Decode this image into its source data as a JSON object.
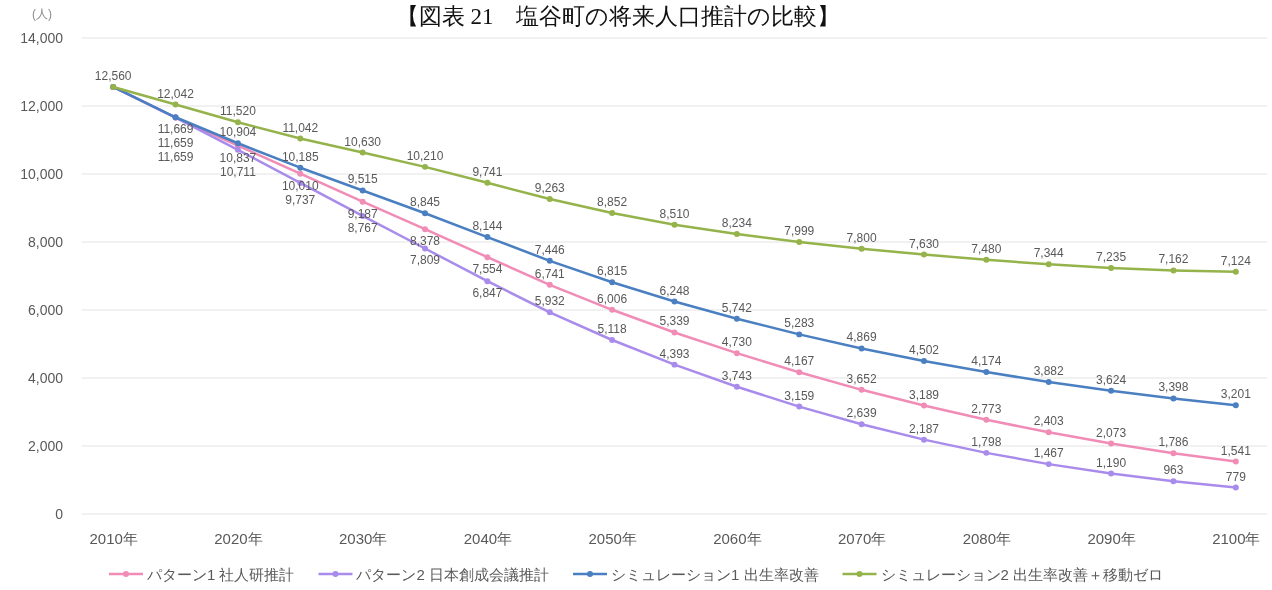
{
  "chart_data": {
    "type": "line",
    "title": "【図表 21　塩谷町の将来人口推計の比較】",
    "ylabel": "(人)",
    "categories": [
      "2010年",
      null,
      "2020年",
      null,
      "2030年",
      null,
      "2040年",
      null,
      "2050年",
      null,
      "2060年",
      null,
      "2070年",
      null,
      "2080年",
      null,
      "2090年",
      null,
      "2100年"
    ],
    "series": [
      {
        "name": "パターン1 社人研推計",
        "color": "#f08cb6",
        "values": [
          12560,
          11659,
          10837,
          10010,
          9187,
          8378,
          7554,
          6741,
          6006,
          5339,
          4730,
          4167,
          3652,
          3189,
          2773,
          2403,
          2073,
          1786,
          1541
        ],
        "value_labels": [
          null,
          "11,659",
          "10,837",
          "10,010",
          "9,187",
          "8,378",
          "7,554",
          "6,741",
          "6,006",
          "5,339",
          "4,730",
          "4,167",
          "3,652",
          "3,189",
          "2,773",
          "2,403",
          "2,073",
          "1,786",
          "1,541"
        ]
      },
      {
        "name": "パターン2 日本創成会議推計",
        "color": "#a98bec",
        "values": [
          12560,
          11659,
          10711,
          9737,
          8767,
          7809,
          6847,
          5932,
          5118,
          4393,
          3743,
          3159,
          2639,
          2187,
          1798,
          1467,
          1190,
          963,
          779
        ],
        "value_labels": [
          null,
          "11,659",
          "10,711",
          "9,737",
          "8,767",
          "7,809",
          "6,847",
          "5,932",
          "5,118",
          "4,393",
          "3,743",
          "3,159",
          "2,639",
          "2,187",
          "1,798",
          "1,467",
          "1,190",
          "963",
          "779"
        ]
      },
      {
        "name": "シミュレーション1 出生率改善",
        "color": "#4a7fc1",
        "values": [
          12560,
          11669,
          10904,
          10185,
          9515,
          8845,
          8144,
          7446,
          6815,
          6248,
          5742,
          5283,
          4869,
          4502,
          4174,
          3882,
          3624,
          3398,
          3201
        ],
        "value_labels": [
          null,
          "11,669",
          "10,904",
          "10,185",
          "9,515",
          "8,845",
          "8,144",
          "7,446",
          "6,815",
          "6,248",
          "5,742",
          "5,283",
          "4,869",
          "4,502",
          "4,174",
          "3,882",
          "3,624",
          "3,398",
          "3,201"
        ]
      },
      {
        "name": "シミュレーション2 出生率改善＋移動ゼロ",
        "color": "#95b34b",
        "values": [
          12560,
          12042,
          11520,
          11042,
          10630,
          10210,
          9741,
          9263,
          8852,
          8510,
          8234,
          7999,
          7800,
          7630,
          7480,
          7344,
          7235,
          7162,
          7124
        ],
        "value_labels": [
          "12,560",
          "12,042",
          "11,520",
          "11,042",
          "10,630",
          "10,210",
          "9,741",
          "9,263",
          "8,852",
          "8,510",
          "8,234",
          "7,999",
          "7,800",
          "7,630",
          "7,480",
          "7,344",
          "7,235",
          "7,162",
          "7,124"
        ]
      }
    ],
    "ylim": [
      0,
      14000
    ],
    "yticks": [
      0,
      {
        "value": 2000,
        "label": "2,000"
      },
      {
        "value": 4000,
        "label": "4,000"
      },
      {
        "value": 6000,
        "label": "6,000"
      },
      {
        "value": 8000,
        "label": "8,000"
      },
      {
        "value": 10000,
        "label": "10,000"
      },
      {
        "value": 12000,
        "label": "12,000"
      },
      {
        "value": 14000,
        "label": "14,000"
      }
    ],
    "grid": "y",
    "legend": "bottom",
    "marker": "circle"
  }
}
